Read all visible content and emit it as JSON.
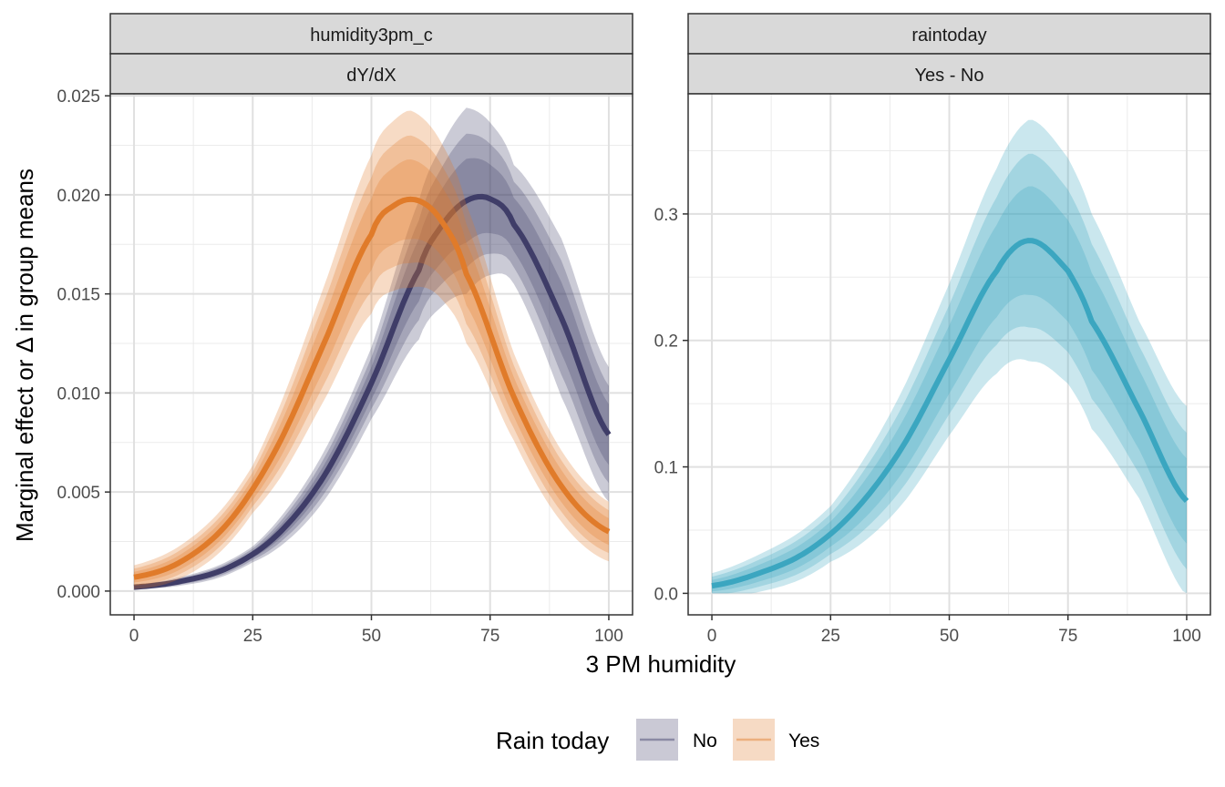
{
  "chart_data": {
    "type": "line",
    "xlabel": "3 PM humidity",
    "ylabel": "Marginal effect or Δ in group means",
    "legend": {
      "title": "Rain today",
      "placement": "bottom",
      "entries": [
        {
          "label": "No",
          "color": "#3f3d68"
        },
        {
          "label": "Yes",
          "color": "#e07b2a"
        }
      ]
    },
    "panels": [
      {
        "strip_top": "humidity3pm_c",
        "strip_bottom": "dY/dX",
        "xlim": [
          -5,
          105
        ],
        "ylim": [
          -0.0012,
          0.0251
        ],
        "x_ticks": [
          0,
          25,
          50,
          75,
          100
        ],
        "y_ticks": [
          0.0,
          0.005,
          0.01,
          0.015,
          0.02,
          0.025
        ],
        "y_tick_labels": [
          "0.000",
          "0.005",
          "0.010",
          "0.015",
          "0.020",
          "0.025"
        ],
        "series": [
          {
            "name": "No",
            "color": "#3f3d68",
            "x": [
              0,
              10,
              20,
              30,
              40,
              50,
              60,
              65,
              70,
              75,
              80,
              90,
              100
            ],
            "y": [
              0.0002,
              0.0005,
              0.0012,
              0.0028,
              0.0058,
              0.0105,
              0.0162,
              0.0185,
              0.0197,
              0.0198,
              0.0185,
              0.0138,
              0.0079
            ],
            "band_halfwidths_at": {
              "x": [
                0,
                25,
                50,
                60,
                70,
                80,
                90,
                100
              ],
              "outer": [
                0.0001,
                0.0004,
                0.0018,
                0.0035,
                0.0047,
                0.003,
                0.004,
                0.0034
              ]
            }
          },
          {
            "name": "Yes",
            "color": "#e07b2a",
            "x": [
              0,
              10,
              20,
              30,
              40,
              50,
              55,
              60,
              65,
              70,
              80,
              90,
              100
            ],
            "y": [
              0.0007,
              0.0015,
              0.0035,
              0.0072,
              0.0125,
              0.018,
              0.0195,
              0.0197,
              0.0186,
              0.016,
              0.0098,
              0.0053,
              0.003
            ],
            "band_halfwidths_at": {
              "x": [
                0,
                25,
                50,
                58,
                70,
                80,
                90,
                100
              ],
              "outer": [
                0.0006,
                0.0012,
                0.004,
                0.0045,
                0.0035,
                0.0022,
                0.0018,
                0.0015
              ]
            }
          }
        ]
      },
      {
        "strip_top": "raintoday",
        "strip_bottom": "Yes - No",
        "xlim": [
          -5,
          105
        ],
        "ylim": [
          -0.017,
          0.395
        ],
        "x_ticks": [
          0,
          25,
          50,
          75,
          100
        ],
        "y_ticks": [
          0.0,
          0.1,
          0.2,
          0.3
        ],
        "y_tick_labels": [
          "0.0",
          "0.1",
          "0.2",
          "0.3"
        ],
        "series": [
          {
            "color": "#3ba6c0",
            "x": [
              0,
              10,
              20,
              30,
              40,
              50,
              60,
              67,
              75,
              80,
              90,
              100
            ],
            "y": [
              0.006,
              0.016,
              0.033,
              0.065,
              0.115,
              0.185,
              0.255,
              0.279,
              0.255,
              0.215,
              0.145,
              0.073
            ],
            "band_halfwidths_at": {
              "x": [
                0,
                25,
                50,
                67,
                80,
                90,
                100
              ],
              "outer": [
                0.01,
                0.022,
                0.06,
                0.096,
                0.085,
                0.07,
                0.075
              ]
            }
          }
        ]
      }
    ]
  }
}
